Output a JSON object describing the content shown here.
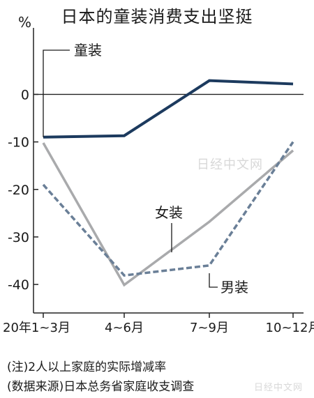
{
  "chart_data": {
    "type": "line",
    "title": "日本的童装消费支出坚挺",
    "unit": "%",
    "categories": [
      "20年1~3月",
      "4~6月",
      "7~9月",
      "10~12月"
    ],
    "ylim": [
      -46,
      14
    ],
    "yticks": [
      0,
      -10,
      -20,
      -30,
      -40
    ],
    "ytick_labels": [
      "0",
      "-10",
      "-20",
      "-30",
      "-40"
    ],
    "grid": false,
    "legend": "none",
    "series": [
      {
        "name": "童装",
        "values": [
          -9,
          -8.7,
          2.9,
          2.2
        ],
        "color": "#1c3a5e",
        "style": "solid"
      },
      {
        "name": "女装",
        "values": [
          -10.2,
          -40.1,
          -26.8,
          -11.8
        ],
        "color": "#a9aaac",
        "style": "solid"
      },
      {
        "name": "男装",
        "values": [
          -19,
          -38.1,
          -36,
          -10
        ],
        "color": "#6a7f97",
        "style": "dashed"
      }
    ]
  },
  "notes": {
    "note1": "(注)2人以上家庭的实际增减率",
    "note2": "(数据来源)日本总务省家庭收支调查"
  },
  "watermarks": {
    "center": "日经中文网",
    "corner": "日经中文网"
  }
}
